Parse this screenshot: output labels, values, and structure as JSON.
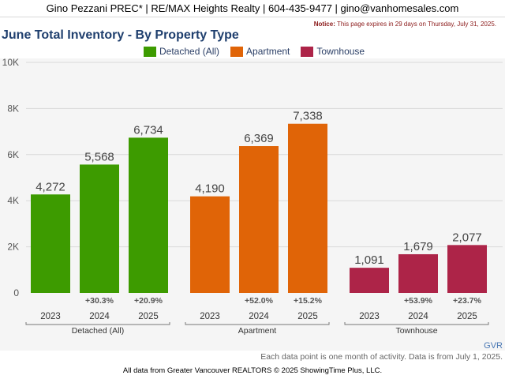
{
  "header": {
    "contact": "Gino Pezzani PREC* | RE/MAX Heights Realty | 604-435-9477 | gino@vanhomesales.com"
  },
  "notice": {
    "label": "Notice:",
    "text": "This page expires in 29 days on Thursday, July 31, 2025."
  },
  "gvr_label": "GVR",
  "footnote": "Each data point is one month of activity. Data is from July 1, 2025.",
  "source": "All data from Greater Vancouver REALTORS © 2025 ShowingTime Plus, LLC.",
  "chart_data": {
    "type": "bar",
    "title": "June Total Inventory - By Property Type",
    "xlabel": "",
    "ylabel": "",
    "ylim": [
      0,
      10000
    ],
    "yticks": [
      {
        "value": 0,
        "label": "0"
      },
      {
        "value": 2000,
        "label": "2K"
      },
      {
        "value": 4000,
        "label": "4K"
      },
      {
        "value": 6000,
        "label": "6K"
      },
      {
        "value": 8000,
        "label": "8K"
      },
      {
        "value": 10000,
        "label": "10K"
      }
    ],
    "grid": true,
    "legend_position": "top",
    "groups": [
      {
        "name": "Detached (All)",
        "color": "#3d9b00",
        "bars": [
          {
            "year": "2023",
            "value": 4272,
            "label": "4,272",
            "change": ""
          },
          {
            "year": "2024",
            "value": 5568,
            "label": "5,568",
            "change": "+30.3%"
          },
          {
            "year": "2025",
            "value": 6734,
            "label": "6,734",
            "change": "+20.9%"
          }
        ]
      },
      {
        "name": "Apartment",
        "color": "#e06407",
        "bars": [
          {
            "year": "2023",
            "value": 4190,
            "label": "4,190",
            "change": ""
          },
          {
            "year": "2024",
            "value": 6369,
            "label": "6,369",
            "change": "+52.0%"
          },
          {
            "year": "2025",
            "value": 7338,
            "label": "7,338",
            "change": "+15.2%"
          }
        ]
      },
      {
        "name": "Townhouse",
        "color": "#ad2448",
        "bars": [
          {
            "year": "2023",
            "value": 1091,
            "label": "1,091",
            "change": ""
          },
          {
            "year": "2024",
            "value": 1679,
            "label": "1,679",
            "change": "+53.9%"
          },
          {
            "year": "2025",
            "value": 2077,
            "label": "2,077",
            "change": "+23.7%"
          }
        ]
      }
    ]
  }
}
